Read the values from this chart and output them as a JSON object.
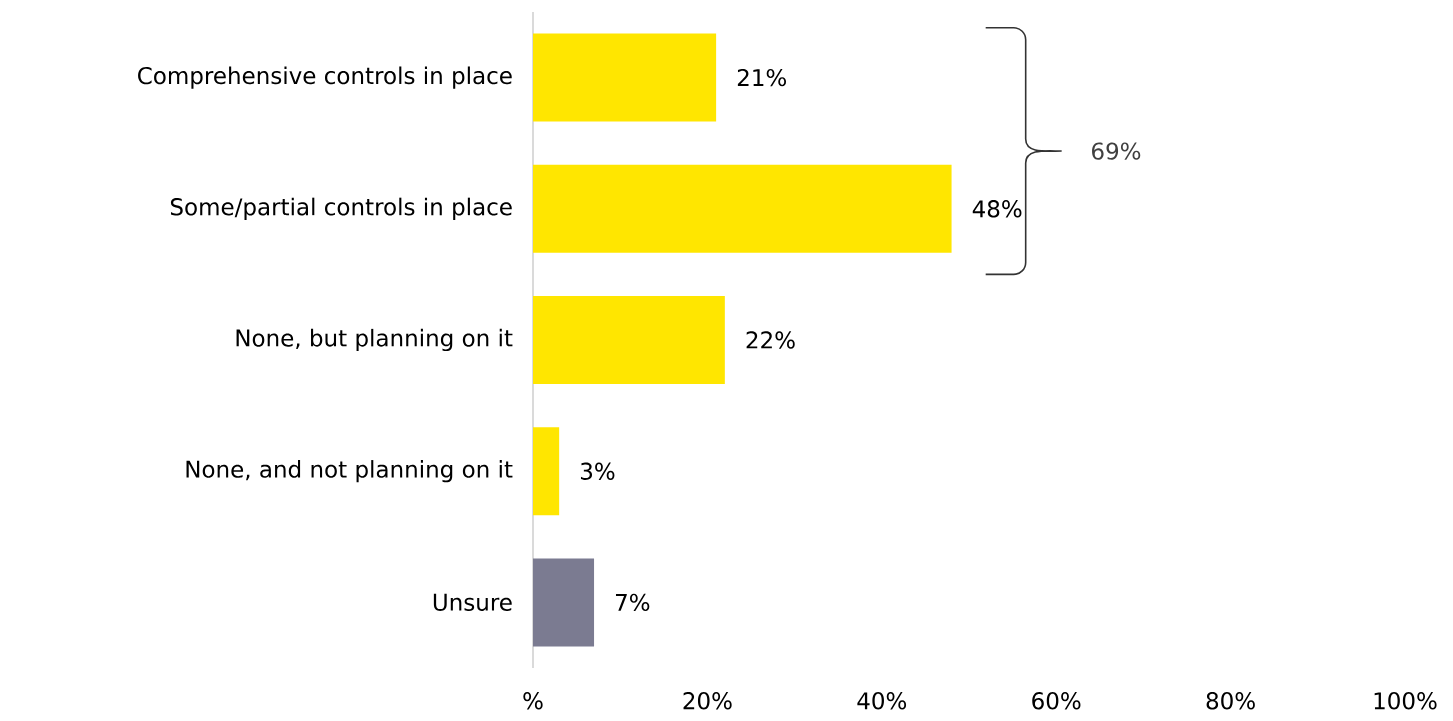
{
  "chart_data": {
    "type": "bar",
    "orientation": "horizontal",
    "categories": [
      "Comprehensive controls in place",
      "Some/partial controls in place",
      "None, but planning on it",
      "None, and not planning on it",
      "Unsure"
    ],
    "values": [
      21,
      48,
      22,
      3,
      7
    ],
    "colors": [
      "#ffe600",
      "#ffe600",
      "#ffe600",
      "#ffe600",
      "#7b7b91"
    ],
    "value_labels": [
      "21%",
      "48%",
      "22%",
      "3%",
      "7%"
    ],
    "xlim": [
      0,
      100
    ],
    "xticks": [
      {
        "value": 0,
        "label": "%"
      },
      {
        "value": 20,
        "label": "20%"
      },
      {
        "value": 40,
        "label": "40%"
      },
      {
        "value": 60,
        "label": "60%"
      },
      {
        "value": 80,
        "label": "80%"
      },
      {
        "value": 100,
        "label": "100%"
      }
    ],
    "annotations": [
      "69%"
    ]
  }
}
